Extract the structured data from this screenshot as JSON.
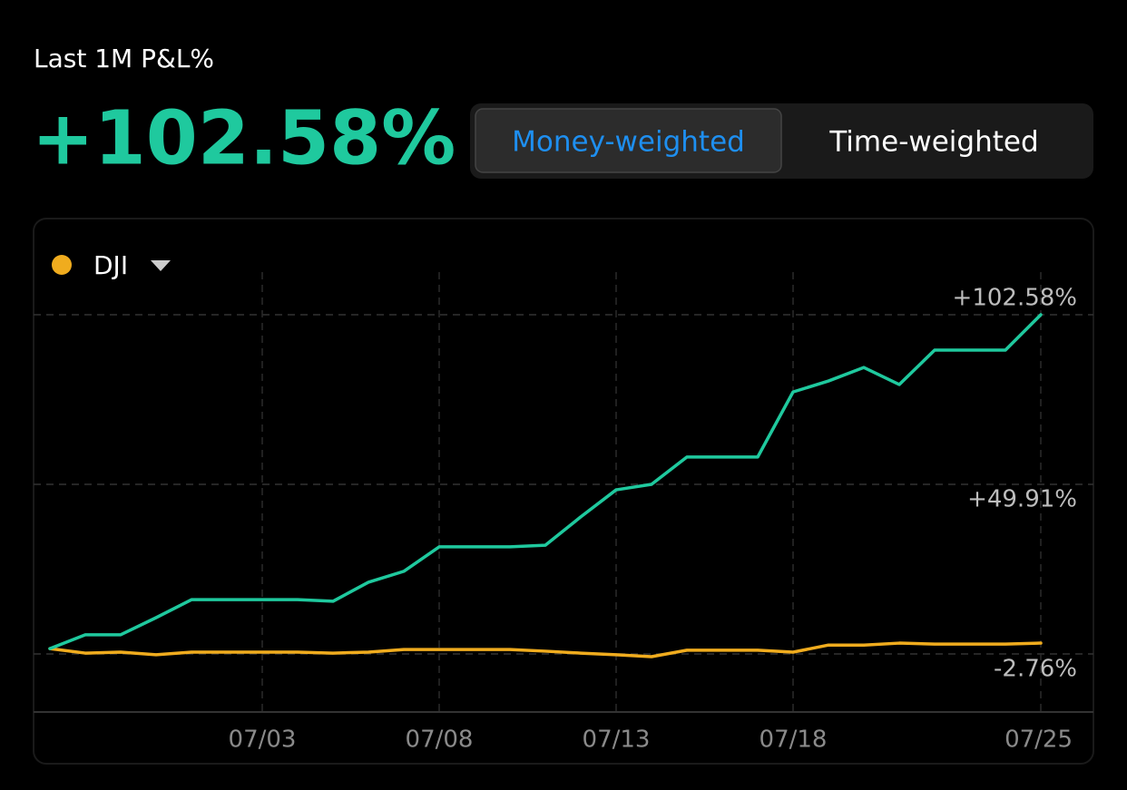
{
  "header": {
    "label": "Last 1M P&L%",
    "value": "+102.58%"
  },
  "tabs": [
    "Money-weighted",
    "Time-weighted"
  ],
  "active_tab": 0,
  "chart_data": {
    "type": "line",
    "categories": [
      null,
      null,
      null,
      null,
      null,
      null,
      "07/03",
      null,
      null,
      null,
      null,
      "07/08",
      null,
      null,
      null,
      null,
      "07/13",
      null,
      null,
      null,
      null,
      "07/18",
      null,
      null,
      null,
      null,
      null,
      null,
      "07/25"
    ],
    "series": [
      {
        "color": "#1fc99e",
        "values": [
          -1.1,
          3.2,
          3.2,
          8.5,
          14.1,
          14.1,
          14.1,
          14.1,
          13.6,
          19.5,
          22.9,
          30.5,
          30.5,
          30.5,
          31.0,
          39.8,
          48.2,
          49.9,
          58.4,
          58.4,
          58.4,
          78.6,
          82.0,
          86.2,
          80.9,
          91.6,
          91.6,
          91.6,
          102.58
        ]
      },
      {
        "name": "DJI",
        "color": "#f0ac1e",
        "values": [
          -1.1,
          -2.5,
          -2.2,
          -3.0,
          -2.2,
          -2.2,
          -2.2,
          -2.2,
          -2.5,
          -2.2,
          -1.4,
          -1.4,
          -1.4,
          -1.4,
          -1.9,
          -2.5,
          -3.0,
          -3.6,
          -1.6,
          -1.6,
          -1.6,
          -2.2,
          0.0,
          0.0,
          0.6,
          0.3,
          0.3,
          0.3,
          0.6
        ]
      }
    ],
    "ylim": [
      -20.79,
      115.82
    ],
    "yticks": [
      {
        "value": 102.58,
        "label": "+102.58%"
      },
      {
        "value": 49.91,
        "label": "+49.91%"
      },
      {
        "value": -2.76,
        "label": "-2.76%"
      }
    ],
    "grid": true
  }
}
